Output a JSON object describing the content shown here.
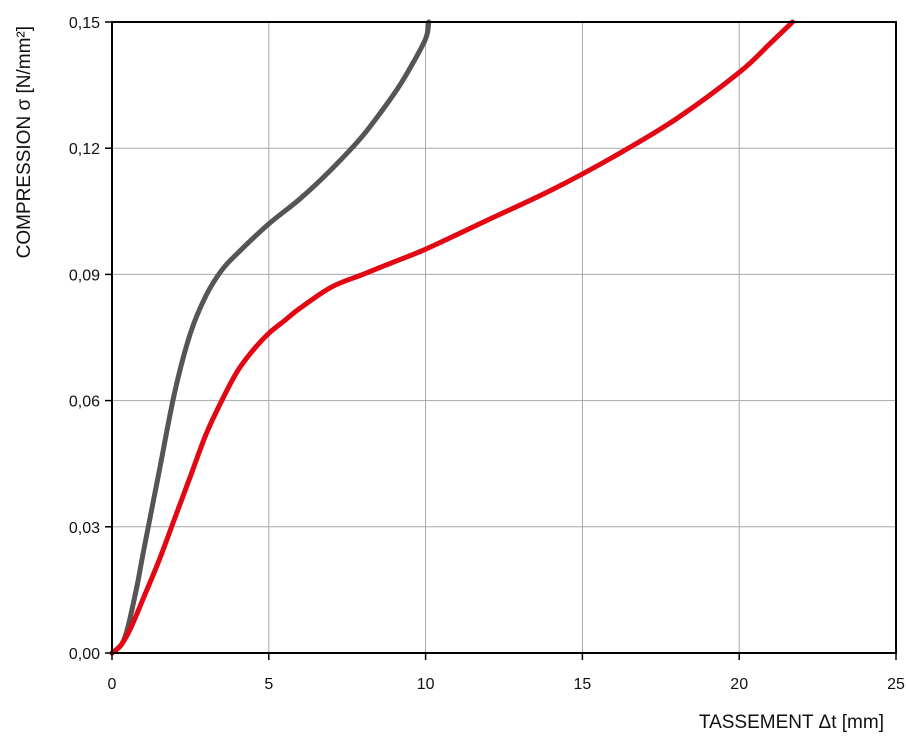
{
  "chart_data": {
    "type": "line",
    "xlabel": "TASSEMENT Δt [mm]",
    "ylabel": "COMPRESSION σ [N/mm²]",
    "xlim": [
      0,
      25
    ],
    "ylim": [
      0,
      0.15
    ],
    "x_ticks": [
      0,
      5,
      10,
      15,
      20,
      25
    ],
    "x_tick_labels": [
      "0",
      "5",
      "10",
      "15",
      "20",
      "25"
    ],
    "y_ticks": [
      0,
      0.03,
      0.06,
      0.09,
      0.12,
      0.15
    ],
    "y_tick_labels": [
      "0,00",
      "0,03",
      "0,06",
      "0,09",
      "0,12",
      "0,15"
    ],
    "grid": true,
    "series": [
      {
        "color": "#555555",
        "points": [
          [
            0,
            0
          ],
          [
            0.3,
            0.002
          ],
          [
            0.5,
            0.006
          ],
          [
            0.8,
            0.016
          ],
          [
            1.0,
            0.024
          ],
          [
            1.5,
            0.043
          ],
          [
            2.0,
            0.062
          ],
          [
            2.5,
            0.076
          ],
          [
            3.0,
            0.085
          ],
          [
            3.5,
            0.091
          ],
          [
            4.0,
            0.095
          ],
          [
            5.0,
            0.102
          ],
          [
            6.0,
            0.108
          ],
          [
            7.0,
            0.115
          ],
          [
            8.0,
            0.123
          ],
          [
            9.0,
            0.133
          ],
          [
            9.5,
            0.139
          ],
          [
            10.0,
            0.146
          ],
          [
            10.1,
            0.15
          ]
        ]
      },
      {
        "color": "#e30613",
        "points": [
          [
            0,
            0
          ],
          [
            0.3,
            0.002
          ],
          [
            0.6,
            0.006
          ],
          [
            1.0,
            0.013
          ],
          [
            1.5,
            0.022
          ],
          [
            2.0,
            0.032
          ],
          [
            2.5,
            0.042
          ],
          [
            3.0,
            0.052
          ],
          [
            3.5,
            0.06
          ],
          [
            4.0,
            0.067
          ],
          [
            4.5,
            0.072
          ],
          [
            5.0,
            0.076
          ],
          [
            5.5,
            0.079
          ],
          [
            6.0,
            0.082
          ],
          [
            7.0,
            0.087
          ],
          [
            8.0,
            0.09
          ],
          [
            9.0,
            0.093
          ],
          [
            10.0,
            0.096
          ],
          [
            12.0,
            0.103
          ],
          [
            14.0,
            0.11
          ],
          [
            16.0,
            0.118
          ],
          [
            18.0,
            0.127
          ],
          [
            20.0,
            0.138
          ],
          [
            21.0,
            0.145
          ],
          [
            21.7,
            0.15
          ]
        ]
      }
    ]
  }
}
